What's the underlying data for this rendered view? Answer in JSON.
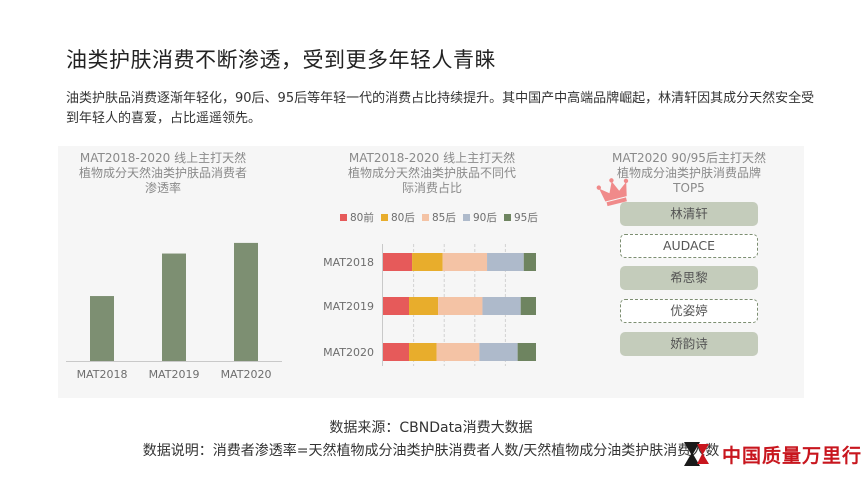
{
  "page": {
    "title": "油类护肤消费不断渗透，受到更多年轻人青睐",
    "description": "油类护肤品消费逐渐年轻化，90后、95后等年轻一代的消费占比持续提升。其中国产中高端品牌崛起，林清轩因其成分天然安全受到年轻人的喜爱，占比遥遥领先。"
  },
  "colors": {
    "bar_green": "#7d8f72",
    "gen_80前": "#e65a5a",
    "gen_80后": "#e8ad2c",
    "gen_85后": "#f4c3a5",
    "gen_90后": "#aebacb",
    "gen_95后": "#6e8460",
    "brand_fill": "#c4ccbb",
    "crown": "#f08a8a",
    "watermark_red": "#c8161e"
  },
  "chart_data": [
    {
      "type": "bar",
      "title": "MAT2018-2020 线上主打天然\n植物成分天然油类护肤品消费者\n渗透率",
      "categories": [
        "MAT2018",
        "MAT2019",
        "MAT2020"
      ],
      "values": [
        0.55,
        0.91,
        1.0
      ],
      "ylim": [
        0,
        1.05
      ],
      "grid": false,
      "value_labels": false
    },
    {
      "type": "bar",
      "stacked": "horizontal",
      "title": "MAT2018-2020 线上主打天然\n植物成分天然油类护肤品不同代\n际消费占比",
      "categories": [
        "MAT2018",
        "MAT2019",
        "MAT2020"
      ],
      "series": [
        {
          "name": "80前",
          "values": [
            0.19,
            0.17,
            0.17
          ]
        },
        {
          "name": "80后",
          "values": [
            0.2,
            0.19,
            0.18
          ]
        },
        {
          "name": "85后",
          "values": [
            0.29,
            0.29,
            0.28
          ]
        },
        {
          "name": "90后",
          "values": [
            0.24,
            0.25,
            0.25
          ]
        },
        {
          "name": "95后",
          "values": [
            0.08,
            0.1,
            0.12
          ]
        }
      ],
      "xlim": [
        0,
        1
      ],
      "legend": "top",
      "grid": "vertical-dashed"
    }
  ],
  "ranking": {
    "title": "MAT2020 90/95后主打天然\n植物成分油类护肤消费品牌\nTOP5",
    "brands": [
      "林清轩",
      "AUDACE",
      "希思黎",
      "优姿婷",
      "娇韵诗"
    ],
    "dashed_rows": [
      1,
      3
    ]
  },
  "footer": {
    "source": "数据来源：CBNData消费大数据",
    "note": "数据说明：消费者渗透率=天然植物成分油类护肤消费者人数/天然植物成分油类护肤消费人数"
  },
  "watermark": {
    "text": "中国质量万里行"
  },
  "icons": {
    "crown": "crown-icon",
    "watermark_logo": "logo-icon"
  }
}
